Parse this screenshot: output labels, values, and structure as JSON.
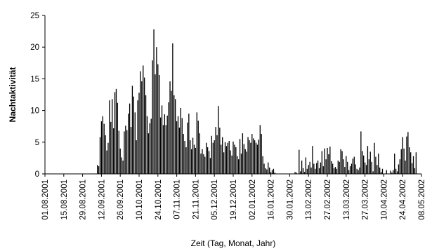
{
  "chart_data": {
    "type": "bar",
    "title": "",
    "xlabel": "Zeit (Tag, Monat, Jahr)",
    "ylabel": "Nachtaktivität",
    "ylim": [
      0,
      25
    ],
    "y_ticks": [
      0,
      5,
      10,
      15,
      20,
      25
    ],
    "x_range": [
      "01.08.2001",
      "08.05.2002"
    ],
    "x_tick_labels": [
      "01.08.2001",
      "15.08.2001",
      "29.08.2001",
      "12.09.2001",
      "26.09.2001",
      "10.10.2001",
      "24.10.2001",
      "07.11.2001",
      "21.11.2001",
      "05.12.2001",
      "19.12.2001",
      "02.01.2002",
      "16.01.2002",
      "30.01.2002",
      "13.02.2002",
      "27.02.2002",
      "13.03.2002",
      "27.03.2002",
      "10.04.2002",
      "24.04.2002",
      "08.05.2002"
    ],
    "grid": false,
    "legend": "none",
    "bar_color": "#000000",
    "start_date": "2001-09-09",
    "values": [
      1.4,
      1.2,
      5.8,
      8.3,
      9.1,
      7.9,
      6.1,
      3.7,
      4.9,
      11.6,
      8.2,
      11.8,
      7.2,
      12.9,
      13.4,
      11.2,
      6.8,
      4.0,
      2.6,
      2.1,
      6.7,
      7.6,
      6.9,
      9.5,
      11.1,
      7.4,
      13.9,
      12.2,
      9.7,
      5.3,
      11.6,
      12.8,
      16.2,
      14.6,
      17.1,
      15.2,
      12.4,
      9.1,
      6.4,
      8.0,
      8.7,
      17.9,
      22.8,
      15.7,
      20.0,
      17.3,
      15.6,
      8.9,
      10.8,
      7.7,
      9.4,
      7.7,
      9.2,
      11.3,
      14.6,
      13.1,
      20.6,
      12.4,
      11.8,
      8.3,
      9.1,
      7.3,
      10.4,
      8.8,
      6.3,
      5.2,
      4.2,
      8.1,
      9.5,
      5.3,
      3.9,
      5.7,
      4.6,
      4.1,
      9.7,
      8.4,
      6.4,
      3.2,
      3.9,
      3.1,
      2.7,
      4.9,
      4.2,
      3.6,
      2.5,
      6.0,
      4.9,
      5.3,
      7.4,
      6.1,
      10.7,
      7.3,
      4.6,
      5.8,
      3.4,
      5.0,
      4.4,
      4.9,
      5.2,
      3.7,
      2.9,
      5.1,
      4.6,
      4.2,
      2.8,
      2.3,
      5.5,
      3.2,
      6.4,
      4.7,
      3.9,
      3.5,
      5.8,
      5.3,
      4.9,
      6.3,
      5.6,
      5.3,
      4.9,
      4.6,
      5.4,
      7.7,
      6.3,
      2.8,
      1.6,
      0.9,
      0.7,
      1.8,
      1.0,
      0.3,
      0.6,
      0.8,
      0.2,
      0,
      0,
      0,
      0,
      0,
      0,
      0,
      0,
      0,
      0,
      0,
      0,
      0,
      0,
      0.3,
      0.2,
      0,
      3.8,
      0.4,
      2.1,
      0.9,
      0.3,
      2.6,
      0.8,
      1.4,
      1.9,
      1.0,
      4.4,
      1.6,
      0.8,
      1.7,
      2.1,
      0.9,
      1.8,
      3.6,
      1.2,
      4.0,
      2.3,
      4.1,
      3.1,
      4.3,
      2.0,
      1.6,
      0.9,
      1.1,
      0.8,
      2.1,
      1.9,
      3.9,
      3.6,
      2.3,
      1.1,
      2.8,
      1.9,
      0.6,
      1.2,
      1.6,
      2.4,
      2.7,
      1.5,
      0.8,
      0.6,
      1.0,
      6.7,
      3.6,
      2.9,
      1.8,
      1.4,
      4.4,
      2.3,
      3.5,
      1.9,
      0.4,
      4.9,
      2.7,
      1.4,
      3.2,
      1.0,
      0.3,
      0.8,
      0,
      0,
      0.6,
      0,
      0,
      0.5,
      0.2,
      0.6,
      3.2,
      0.8,
      0.4,
      1.5,
      2.3,
      3.9,
      5.8,
      4.0,
      2.1,
      5.9,
      6.6,
      4.2,
      3.4,
      1.7,
      2.8,
      0.9,
      3.4
    ]
  }
}
